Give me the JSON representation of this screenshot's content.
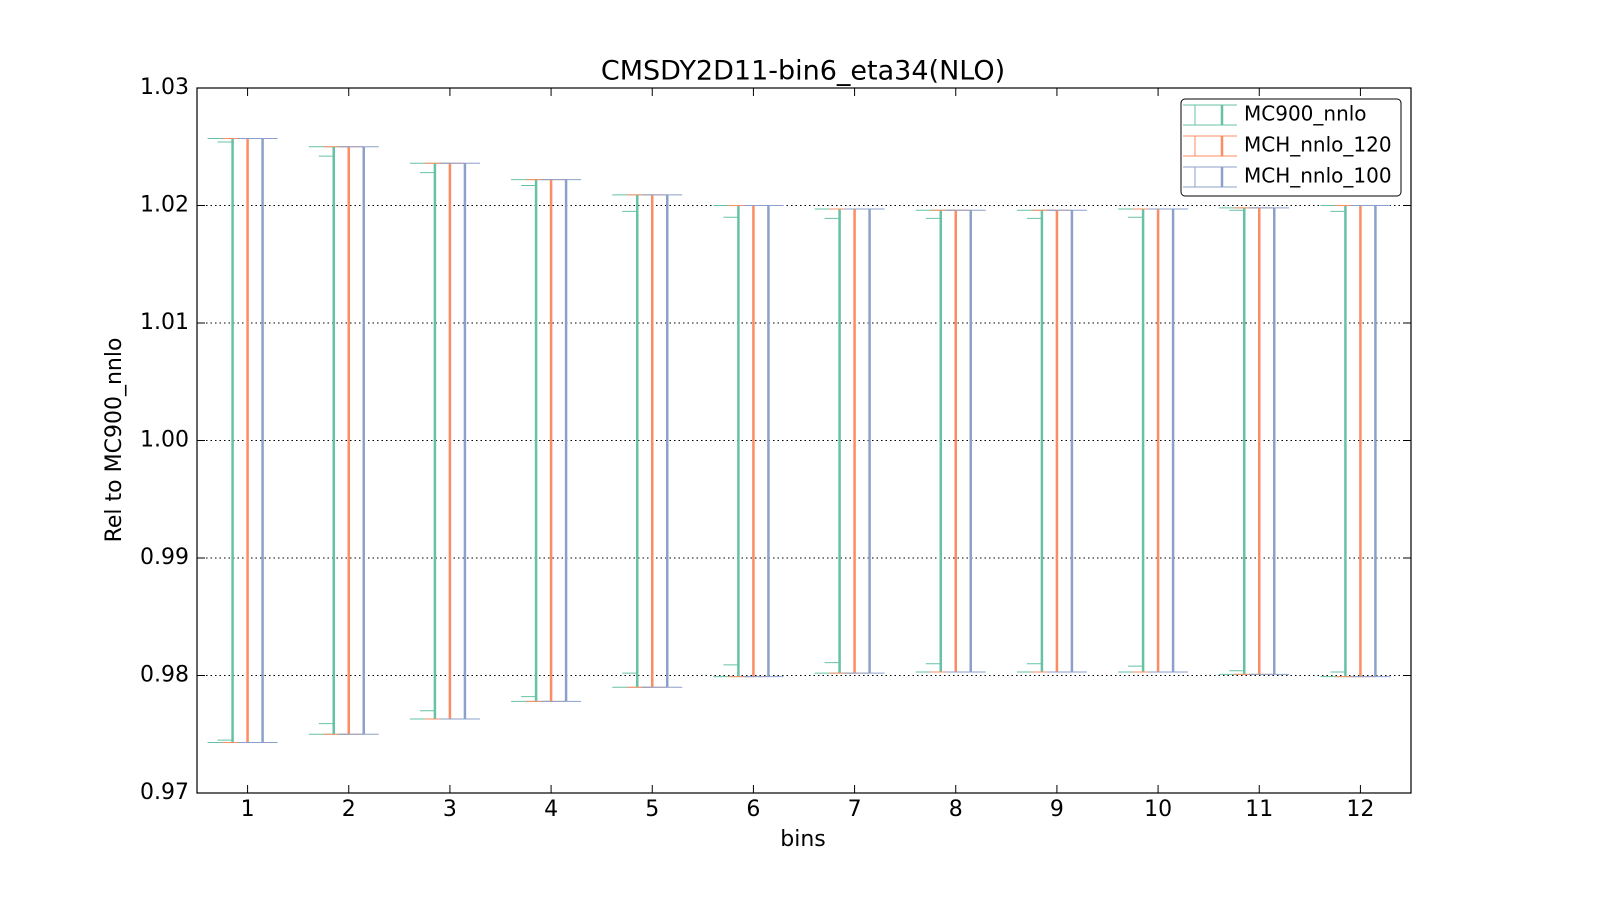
{
  "chart_data": {
    "type": "errorbar",
    "title": "CMSDY2D11-bin6_eta34(NLO)",
    "xlabel": "bins",
    "ylabel": "Rel to MC900_nnlo",
    "x": [
      1,
      2,
      3,
      4,
      5,
      6,
      7,
      8,
      9,
      10,
      11,
      12
    ],
    "xlim": [
      0.5,
      12.5
    ],
    "xticks": [
      1,
      2,
      3,
      4,
      5,
      6,
      7,
      8,
      9,
      10,
      11,
      12
    ],
    "ylim": [
      0.97,
      1.03
    ],
    "yticks": [
      0.97,
      0.98,
      0.99,
      {
        "value": 1.0,
        "label": "1.00"
      },
      1.01,
      1.02,
      1.03
    ],
    "grid": true,
    "legend": "upper right",
    "series": [
      {
        "name": "MC900_nnlo",
        "color": "#66c2a5",
        "lower": [
          0.9743,
          0.975,
          0.9763,
          0.9778,
          0.979,
          0.9799,
          0.9802,
          0.9803,
          0.9803,
          0.9803,
          0.9801,
          0.9799
        ],
        "upper": [
          1.0257,
          1.025,
          1.0236,
          1.0222,
          1.0209,
          1.02,
          1.0197,
          1.0196,
          1.0196,
          1.0197,
          1.0198,
          1.02
        ],
        "inner_lower": [
          0.9745,
          0.9759,
          0.977,
          0.9782,
          0.9802,
          0.9809,
          0.9811,
          0.981,
          0.981,
          0.9808,
          0.9804,
          0.9803
        ],
        "inner_upper": [
          1.0254,
          1.0242,
          1.0228,
          1.0217,
          1.0195,
          1.019,
          1.0189,
          1.0189,
          1.0189,
          1.019,
          1.0196,
          1.0195
        ]
      },
      {
        "name": "MCH_nnlo_120",
        "color": "#fc8d62",
        "lower": [
          0.9743,
          0.975,
          0.9763,
          0.9778,
          0.979,
          0.9799,
          0.9802,
          0.9803,
          0.9803,
          0.9803,
          0.9801,
          0.9799
        ],
        "upper": [
          1.0257,
          1.025,
          1.0236,
          1.0222,
          1.0209,
          1.02,
          1.0197,
          1.0196,
          1.0196,
          1.0197,
          1.0198,
          1.02
        ]
      },
      {
        "name": "MCH_nnlo_100",
        "color": "#8da0cb",
        "lower": [
          0.9743,
          0.975,
          0.9763,
          0.9778,
          0.979,
          0.9799,
          0.9802,
          0.9803,
          0.9803,
          0.9803,
          0.9801,
          0.9799
        ],
        "upper": [
          1.0257,
          1.025,
          1.0236,
          1.0222,
          1.0209,
          1.02,
          1.0197,
          1.0196,
          1.0196,
          1.0197,
          1.0198,
          1.02
        ]
      }
    ]
  }
}
